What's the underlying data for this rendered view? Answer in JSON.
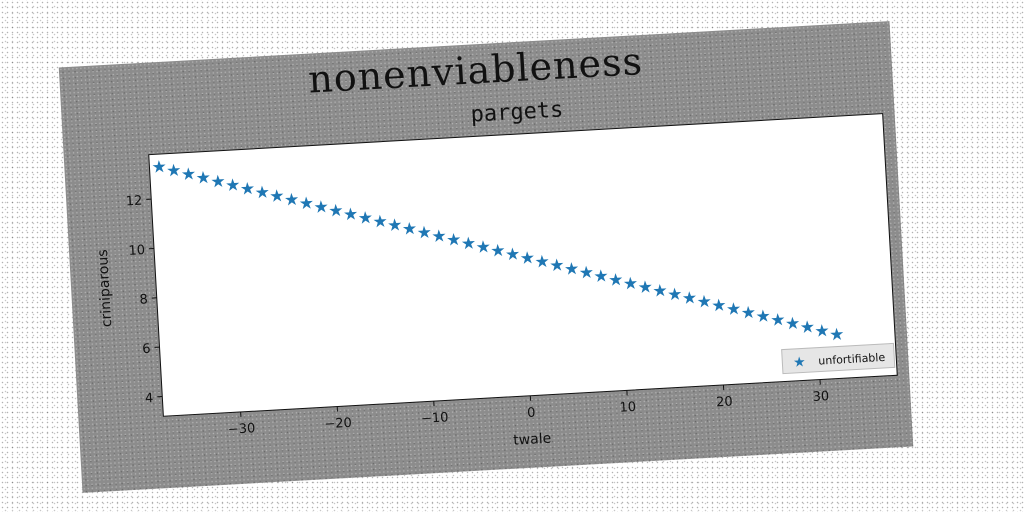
{
  "figure": {
    "suptitle": "nonenviableness"
  },
  "chart_data": {
    "type": "scatter",
    "title": "pargets",
    "xlabel": "twale",
    "ylabel": "criniparous",
    "xlim": [
      -38,
      38
    ],
    "ylim": [
      3.2,
      13.8
    ],
    "xticks": [
      -30,
      -20,
      -10,
      0,
      10,
      20,
      30
    ],
    "yticks": [
      4,
      6,
      8,
      10,
      12
    ],
    "grid": false,
    "legend_placement": "lower-right",
    "marker": "star",
    "series": [
      {
        "name": "unfortifiable",
        "color": "#1f77b4",
        "x_start": -37,
        "x_end": 32,
        "x_step": 1.5,
        "y_start": 13.3,
        "y_end": 5.0
      }
    ]
  }
}
